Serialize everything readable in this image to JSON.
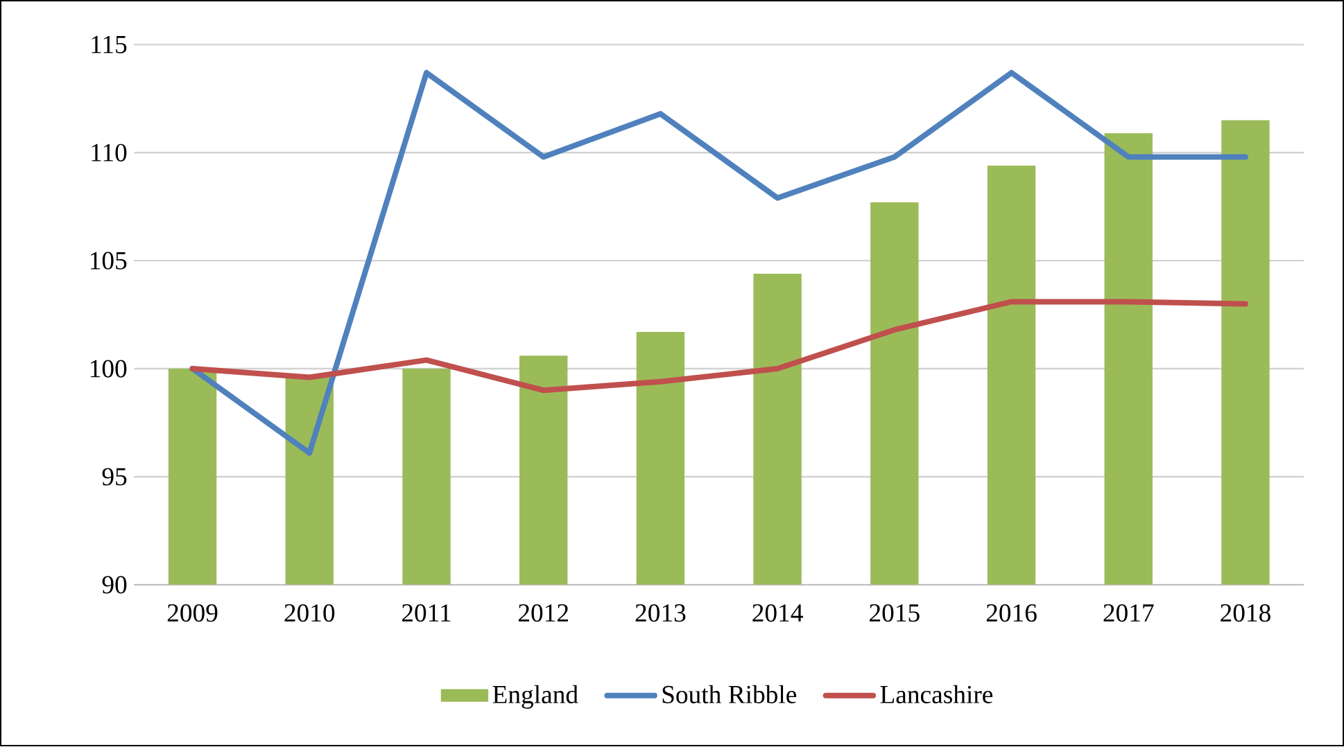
{
  "chart_data": {
    "type": "bar",
    "categories": [
      "2009",
      "2010",
      "2011",
      "2012",
      "2013",
      "2014",
      "2015",
      "2016",
      "2017",
      "2018"
    ],
    "series": [
      {
        "name": "England",
        "color": "#9bbb59",
        "values": [
          100,
          99.7,
          100,
          100.6,
          101.7,
          104.4,
          107.7,
          109.4,
          110.9,
          111.5
        ]
      },
      {
        "name": "South Ribble",
        "type": "line",
        "color": "#4f81bd",
        "values": [
          100,
          96.1,
          113.7,
          109.8,
          111.8,
          107.9,
          109.8,
          113.7,
          109.8,
          109.8
        ]
      },
      {
        "name": "Lancashire",
        "type": "line",
        "color": "#c0504d",
        "values": [
          100,
          99.6,
          100.4,
          99.0,
          99.4,
          100.0,
          101.8,
          103.1,
          103.1,
          103.0
        ]
      }
    ],
    "ylim": [
      90,
      115
    ],
    "yticks": [
      90,
      95,
      100,
      105,
      110,
      115
    ],
    "grid": "y",
    "legend": "bottom",
    "marker": "none",
    "line_style": "solid"
  }
}
